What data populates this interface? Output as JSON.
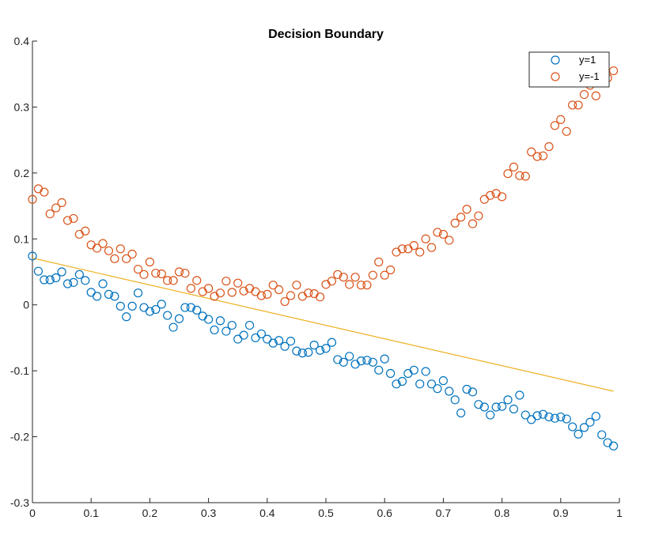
{
  "colors": {
    "series_1": "#0072BD",
    "series_2": "#D95319",
    "boundary": "#EDB120",
    "axis": "#262626"
  },
  "chart_data": {
    "type": "scatter",
    "title": "Decision Boundary",
    "xlabel": "",
    "ylabel": "",
    "xlim": [
      0,
      1
    ],
    "ylim": [
      -0.3,
      0.4
    ],
    "x_ticks": [
      "0",
      "0.1",
      "0.2",
      "0.3",
      "0.4",
      "0.5",
      "0.6",
      "0.7",
      "0.8",
      "0.9",
      "1"
    ],
    "y_ticks": [
      "-0.3",
      "-0.2",
      "-0.1",
      "0",
      "0.1",
      "0.2",
      "0.3",
      "0.4"
    ],
    "grid": false,
    "legend_position": "top-right",
    "marker": "open-circle",
    "series": [
      {
        "name": "y=1",
        "color": "#0072BD",
        "x": [
          0.0,
          0.01,
          0.02,
          0.03,
          0.04,
          0.05,
          0.06,
          0.07,
          0.08,
          0.09,
          0.1,
          0.11,
          0.12,
          0.13,
          0.14,
          0.15,
          0.16,
          0.17,
          0.18,
          0.19,
          0.2,
          0.21,
          0.22,
          0.23,
          0.24,
          0.25,
          0.26,
          0.27,
          0.28,
          0.29,
          0.3,
          0.31,
          0.32,
          0.33,
          0.34,
          0.35,
          0.36,
          0.37,
          0.38,
          0.39,
          0.4,
          0.41,
          0.42,
          0.43,
          0.44,
          0.45,
          0.46,
          0.47,
          0.48,
          0.49,
          0.5,
          0.51,
          0.52,
          0.53,
          0.54,
          0.55,
          0.56,
          0.57,
          0.58,
          0.59,
          0.6,
          0.61,
          0.62,
          0.63,
          0.64,
          0.65,
          0.66,
          0.67,
          0.68,
          0.69,
          0.7,
          0.71,
          0.72,
          0.73,
          0.74,
          0.75,
          0.76,
          0.77,
          0.78,
          0.79,
          0.8,
          0.81,
          0.82,
          0.83,
          0.84,
          0.85,
          0.86,
          0.87,
          0.88,
          0.89,
          0.9,
          0.91,
          0.92,
          0.93,
          0.94,
          0.95,
          0.96,
          0.97,
          0.98,
          0.99
        ],
        "y": [
          0.074,
          0.051,
          0.038,
          0.038,
          0.041,
          0.05,
          0.032,
          0.034,
          0.046,
          0.037,
          0.019,
          0.013,
          0.032,
          0.016,
          0.013,
          -0.002,
          -0.018,
          -0.002,
          0.018,
          -0.004,
          -0.01,
          -0.007,
          0.001,
          -0.016,
          -0.034,
          -0.021,
          -0.004,
          -0.004,
          -0.008,
          -0.017,
          -0.022,
          -0.038,
          -0.024,
          -0.04,
          -0.031,
          -0.052,
          -0.046,
          -0.031,
          -0.05,
          -0.044,
          -0.052,
          -0.058,
          -0.054,
          -0.063,
          -0.055,
          -0.07,
          -0.073,
          -0.072,
          -0.061,
          -0.069,
          -0.066,
          -0.057,
          -0.083,
          -0.087,
          -0.078,
          -0.09,
          -0.085,
          -0.084,
          -0.087,
          -0.099,
          -0.082,
          -0.104,
          -0.12,
          -0.116,
          -0.104,
          -0.099,
          -0.12,
          -0.101,
          -0.12,
          -0.127,
          -0.115,
          -0.131,
          -0.144,
          -0.164,
          -0.128,
          -0.132,
          -0.151,
          -0.155,
          -0.167,
          -0.155,
          -0.154,
          -0.144,
          -0.158,
          -0.137,
          -0.167,
          -0.174,
          -0.168,
          -0.166,
          -0.17,
          -0.172,
          -0.17,
          -0.173,
          -0.185,
          -0.196,
          -0.186,
          -0.178,
          -0.169,
          -0.197,
          -0.209,
          -0.214
        ]
      },
      {
        "name": "y=-1",
        "color": "#D95319",
        "x": [
          0.0,
          0.01,
          0.02,
          0.03,
          0.04,
          0.05,
          0.06,
          0.07,
          0.08,
          0.09,
          0.1,
          0.11,
          0.12,
          0.13,
          0.14,
          0.15,
          0.16,
          0.17,
          0.18,
          0.19,
          0.2,
          0.21,
          0.22,
          0.23,
          0.24,
          0.25,
          0.26,
          0.27,
          0.28,
          0.29,
          0.3,
          0.31,
          0.32,
          0.33,
          0.34,
          0.35,
          0.36,
          0.37,
          0.38,
          0.39,
          0.4,
          0.41,
          0.42,
          0.43,
          0.44,
          0.45,
          0.46,
          0.47,
          0.48,
          0.49,
          0.5,
          0.51,
          0.52,
          0.53,
          0.54,
          0.55,
          0.56,
          0.57,
          0.58,
          0.59,
          0.6,
          0.61,
          0.62,
          0.63,
          0.64,
          0.65,
          0.66,
          0.67,
          0.68,
          0.69,
          0.7,
          0.71,
          0.72,
          0.73,
          0.74,
          0.75,
          0.76,
          0.77,
          0.78,
          0.79,
          0.8,
          0.81,
          0.82,
          0.83,
          0.84,
          0.85,
          0.86,
          0.87,
          0.88,
          0.89,
          0.9,
          0.91,
          0.92,
          0.93,
          0.94,
          0.95,
          0.96,
          0.97,
          0.98,
          0.99
        ],
        "y": [
          0.16,
          0.176,
          0.171,
          0.138,
          0.147,
          0.155,
          0.128,
          0.131,
          0.107,
          0.112,
          0.091,
          0.086,
          0.093,
          0.082,
          0.07,
          0.085,
          0.07,
          0.077,
          0.054,
          0.046,
          0.065,
          0.048,
          0.047,
          0.037,
          0.037,
          0.05,
          0.048,
          0.025,
          0.037,
          0.02,
          0.025,
          0.013,
          0.018,
          0.036,
          0.019,
          0.033,
          0.021,
          0.025,
          0.02,
          0.014,
          0.016,
          0.03,
          0.023,
          0.005,
          0.014,
          0.03,
          0.013,
          0.018,
          0.017,
          0.012,
          0.031,
          0.036,
          0.046,
          0.042,
          0.031,
          0.042,
          0.03,
          0.03,
          0.045,
          0.065,
          0.045,
          0.053,
          0.08,
          0.085,
          0.085,
          0.09,
          0.08,
          0.1,
          0.087,
          0.11,
          0.107,
          0.098,
          0.124,
          0.133,
          0.145,
          0.123,
          0.135,
          0.16,
          0.166,
          0.169,
          0.164,
          0.199,
          0.209,
          0.196,
          0.195,
          0.232,
          0.225,
          0.226,
          0.24,
          0.272,
          0.281,
          0.263,
          0.303,
          0.303,
          0.319,
          0.333,
          0.317,
          0.346,
          0.344,
          0.355
        ]
      }
    ],
    "lines": [
      {
        "label": "",
        "color": "#EDB120",
        "x": [
          0,
          0.99
        ],
        "y": [
          0.071,
          -0.131
        ]
      }
    ]
  }
}
